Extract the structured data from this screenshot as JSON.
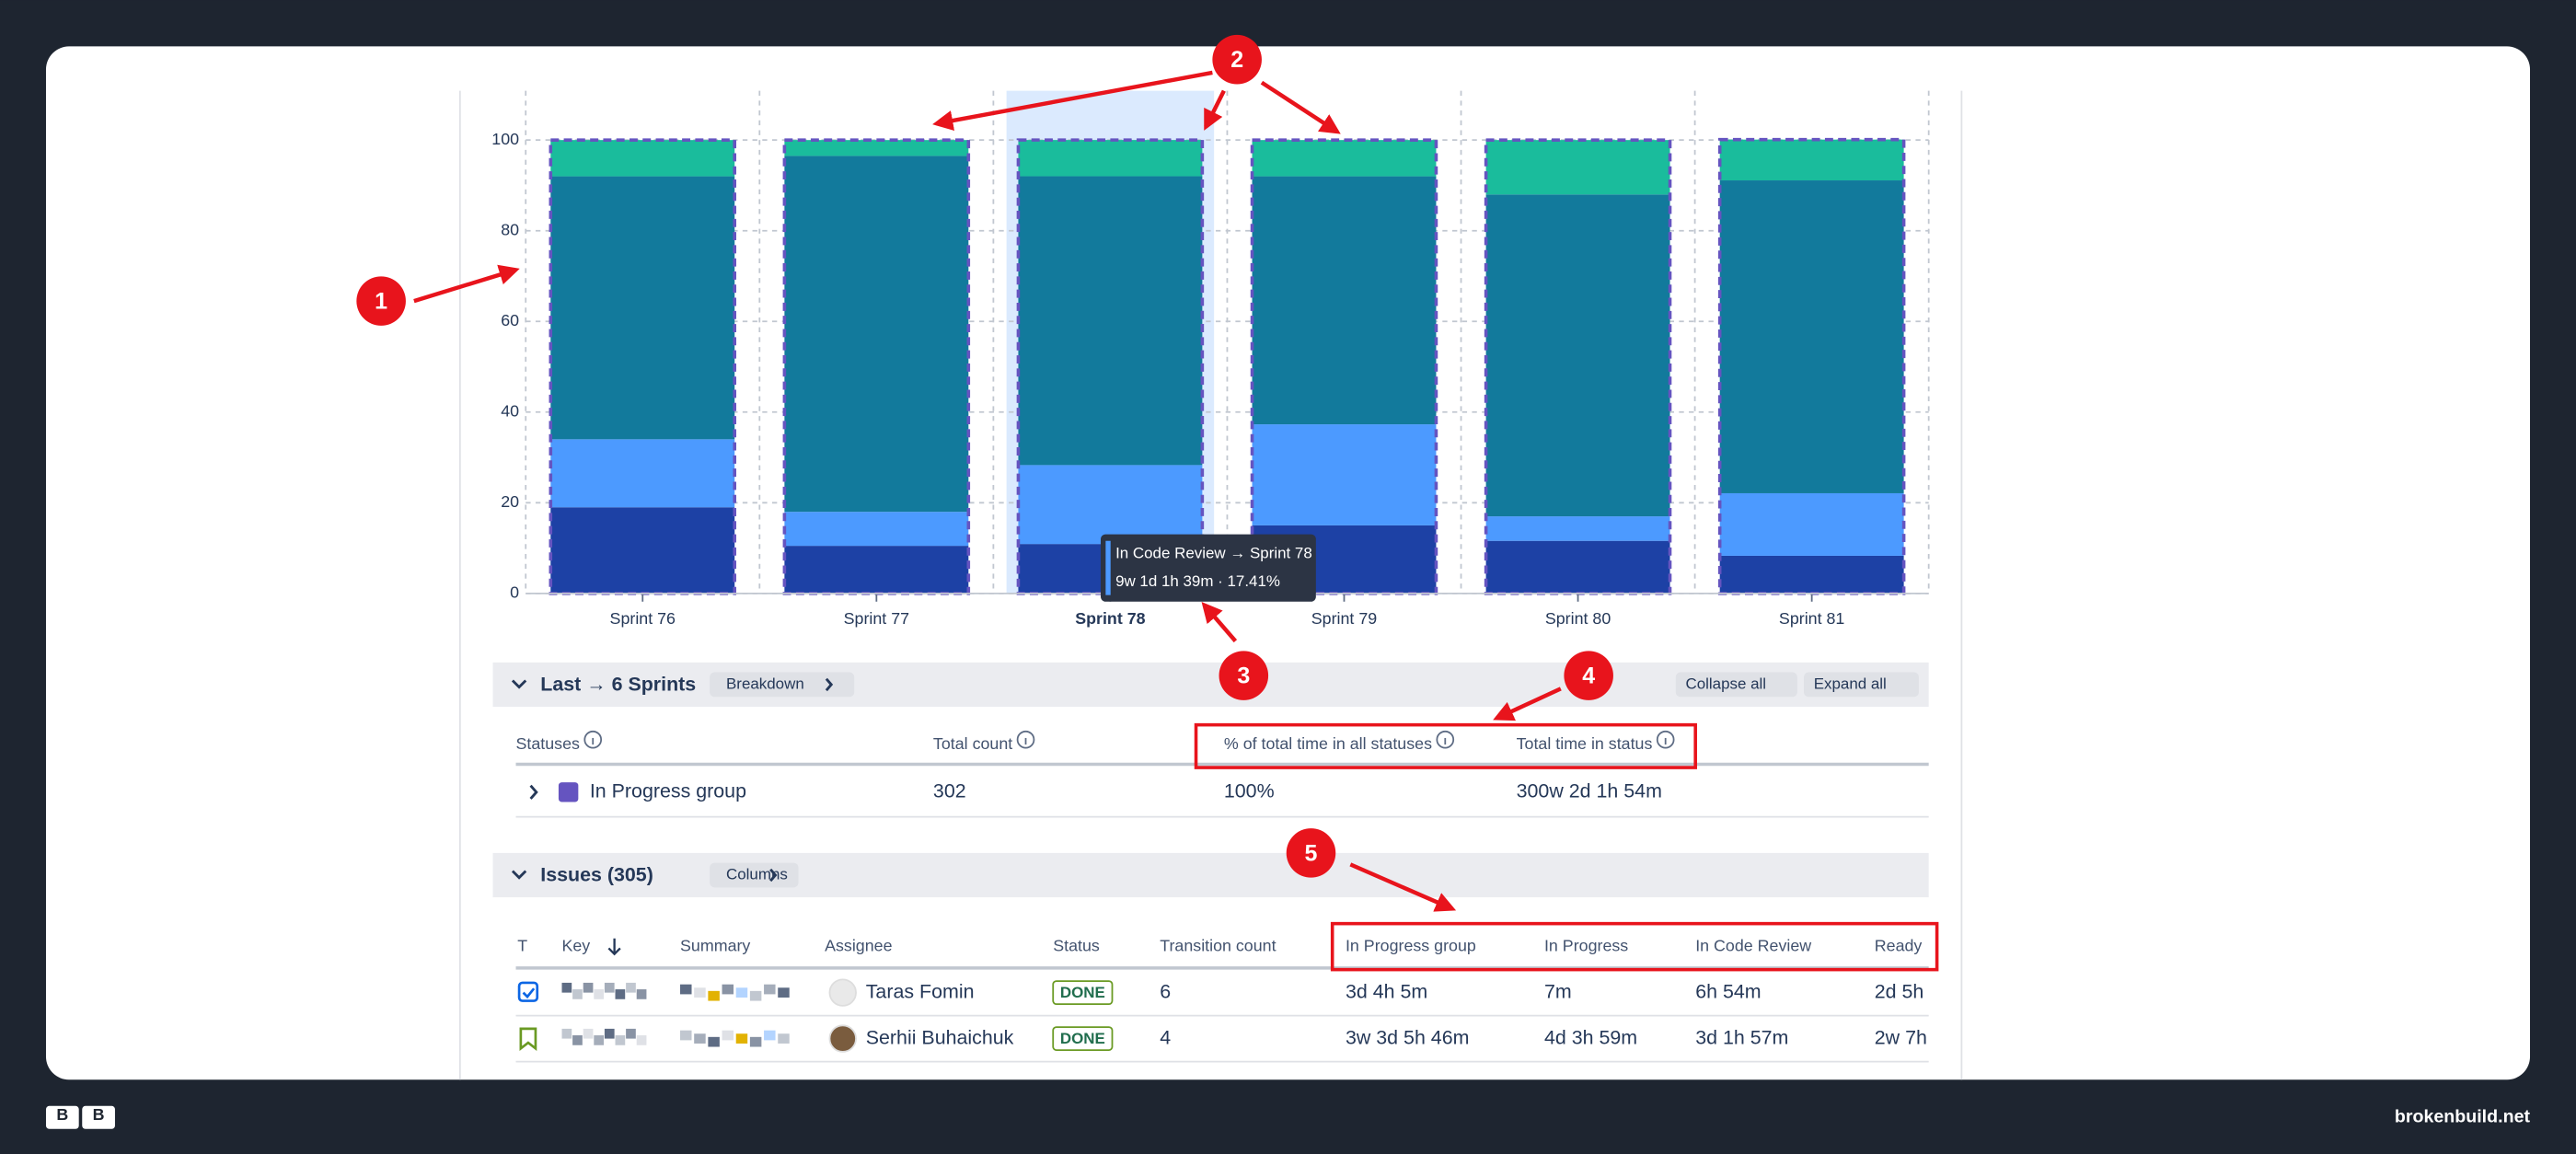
{
  "chart": {
    "type": "bar",
    "stacked": true,
    "categories": [
      "Sprint 76",
      "Sprint 77",
      "Sprint 78",
      "Sprint 79",
      "Sprint 80",
      "Sprint 81"
    ],
    "highlighted": 2,
    "series": [
      {
        "color": "#1d41a5",
        "values": [
          19,
          10.5,
          10.9,
          15,
          11.6,
          8.3
        ]
      },
      {
        "color": "#4c9aff",
        "values": [
          15,
          7.5,
          17.41,
          22.3,
          5.4,
          13.8
        ]
      },
      {
        "color": "#127a9c",
        "values": [
          58,
          78.5,
          63.7,
          54.7,
          71,
          69
        ]
      },
      {
        "color": "#1abc9c",
        "values": [
          8,
          3.5,
          8,
          8,
          12,
          9
        ]
      }
    ],
    "ylim": [
      0,
      100
    ],
    "yticks": [
      0,
      20,
      40,
      60,
      80,
      100
    ],
    "grid": true,
    "tooltip": {
      "title": "In Code Review → Sprint 78",
      "value": "9w 1d 1h 39m · 17.41%"
    }
  },
  "breakdown": {
    "title": "Last → 6 Sprints",
    "button": "Breakdown",
    "collapse": "Collapse all",
    "expand": "Expand all",
    "columns": [
      "Statuses",
      "Total count",
      "% of total time in all statuses",
      "Total time in status"
    ],
    "rows": [
      [
        "In Progress group",
        302,
        "100%",
        "300w 2d 1h 54m"
      ]
    ]
  },
  "issues": {
    "title": "Issues (305)",
    "button": "Columns",
    "columns": [
      "T",
      "Key",
      "Summary",
      "Assignee",
      "Status",
      "Transition count",
      "In Progress group",
      "In Progress",
      "In Code Review",
      "Ready"
    ],
    "rows": [
      {
        "assignee": "Taras Fomin",
        "status": "DONE",
        "transitions": 6,
        "times": [
          "3d 4h 5m",
          "7m",
          "6h 54m",
          "2d 5h"
        ]
      },
      {
        "assignee": "Serhii Buhaichuk",
        "status": "DONE",
        "transitions": 4,
        "times": [
          "3w 3d 5h 46m",
          "4d 3h 59m",
          "3d 1h 57m",
          "2w 7h"
        ]
      }
    ]
  },
  "annotations": [
    "1",
    "2",
    "3",
    "4",
    "5"
  ],
  "footer": {
    "logo": [
      "B",
      "B"
    ],
    "site": "brokenbuild.net"
  }
}
